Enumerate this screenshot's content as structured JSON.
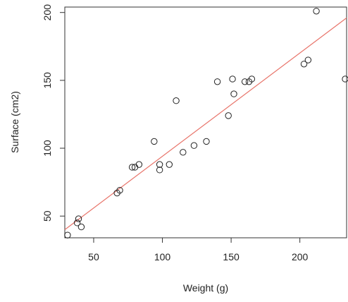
{
  "chart_data": {
    "type": "scatter",
    "title": "",
    "xlabel": "Weight (g)",
    "ylabel": "Surface (cm2)",
    "xlim": [
      29,
      234
    ],
    "ylim": [
      34,
      204
    ],
    "x_ticks": [
      50,
      100,
      150,
      200
    ],
    "y_ticks": [
      50,
      100,
      150,
      200
    ],
    "grid": false,
    "legend": "none",
    "colors": {
      "points": "#222222",
      "fit_line": "#e8746a",
      "axis": "#333333"
    },
    "fit_line": {
      "x": [
        29,
        234
      ],
      "y": [
        40,
        196
      ]
    },
    "points": [
      {
        "x": 31,
        "y": 36
      },
      {
        "x": 38,
        "y": 45
      },
      {
        "x": 39,
        "y": 48
      },
      {
        "x": 41,
        "y": 42
      },
      {
        "x": 67,
        "y": 67
      },
      {
        "x": 69,
        "y": 69
      },
      {
        "x": 78,
        "y": 86
      },
      {
        "x": 80,
        "y": 86
      },
      {
        "x": 83,
        "y": 88
      },
      {
        "x": 94,
        "y": 105
      },
      {
        "x": 98,
        "y": 84
      },
      {
        "x": 98,
        "y": 88
      },
      {
        "x": 105,
        "y": 88
      },
      {
        "x": 110,
        "y": 135
      },
      {
        "x": 115,
        "y": 97
      },
      {
        "x": 123,
        "y": 102
      },
      {
        "x": 132,
        "y": 105
      },
      {
        "x": 140,
        "y": 149
      },
      {
        "x": 148,
        "y": 124
      },
      {
        "x": 151,
        "y": 151
      },
      {
        "x": 152,
        "y": 140
      },
      {
        "x": 160,
        "y": 149
      },
      {
        "x": 163,
        "y": 149
      },
      {
        "x": 165,
        "y": 151
      },
      {
        "x": 203,
        "y": 162
      },
      {
        "x": 206,
        "y": 165
      },
      {
        "x": 212,
        "y": 201
      },
      {
        "x": 233,
        "y": 151
      }
    ]
  }
}
